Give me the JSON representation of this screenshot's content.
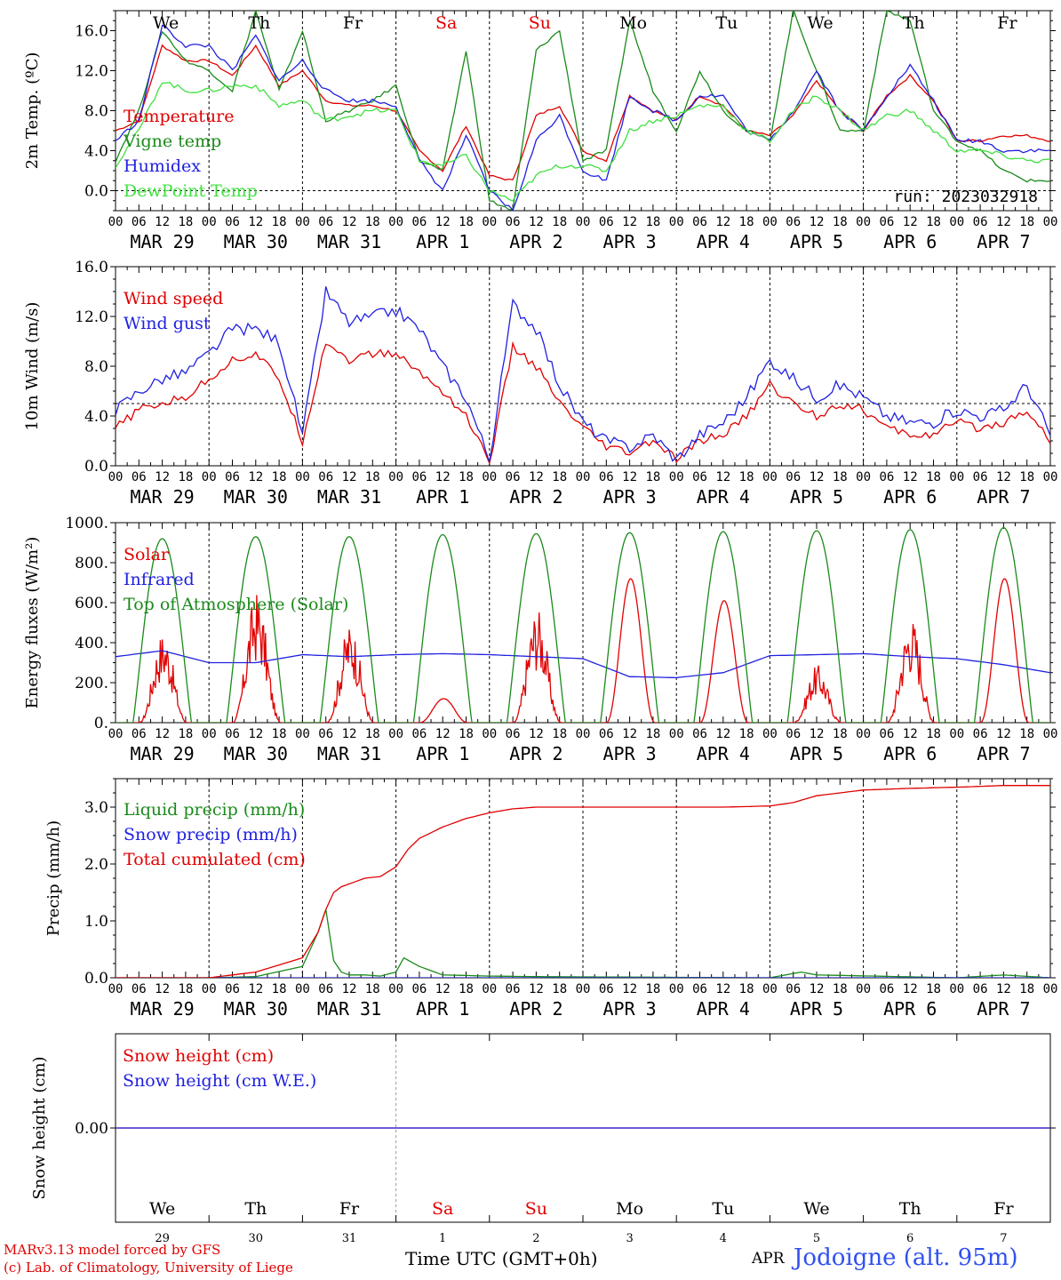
{
  "chart_data": [
    {
      "type": "line",
      "ylabel": "2m Temp. (ºC)",
      "ylim": [
        -2,
        18
      ],
      "yticks": [
        "0.0",
        "4.0",
        "8.0",
        "12.0",
        "16.0"
      ],
      "ytick_values": [
        0,
        4,
        8,
        12,
        16
      ],
      "ref_line": 0,
      "run_label": "run: 2023032918",
      "x_hours": [
        0,
        6,
        12,
        18,
        24,
        30,
        36,
        42,
        48,
        54,
        60,
        66,
        72,
        78,
        84,
        90,
        96,
        102,
        108,
        114,
        120,
        126,
        132,
        138,
        144,
        150,
        156,
        162,
        168,
        174,
        180,
        186,
        192,
        198,
        204,
        210,
        216,
        222,
        228,
        234,
        240
      ],
      "series": [
        {
          "name": "Temperature",
          "color": "#e00000",
          "values": [
            6,
            7,
            14.5,
            13,
            13,
            11.5,
            14.5,
            10.5,
            12,
            9,
            8.5,
            8.5,
            8,
            4,
            2,
            6.5,
            1.5,
            1,
            7.5,
            8.5,
            4,
            3,
            9.5,
            8,
            7,
            9.5,
            8.5,
            6,
            5.5,
            7.5,
            11,
            8,
            6,
            9.5,
            11.5,
            9,
            5,
            5,
            5.5,
            5.5,
            5
          ]
        },
        {
          "name": "Vigne temp",
          "color": "#1a8a1a",
          "values": [
            3,
            8,
            16,
            13,
            12,
            10,
            18,
            10,
            16,
            7,
            8,
            9,
            10.5,
            3,
            2,
            14,
            -1,
            -2,
            14,
            16,
            3,
            4,
            17,
            10,
            6,
            12,
            8,
            6,
            5,
            18,
            12,
            6,
            6,
            18,
            17,
            8,
            5,
            4,
            2,
            1,
            1
          ]
        },
        {
          "name": "Humidex",
          "color": "#2020e0",
          "values": [
            5,
            7,
            16.5,
            14.5,
            14.5,
            12,
            15.5,
            11,
            13,
            10,
            9,
            9,
            8.5,
            3,
            0,
            5.5,
            0,
            -2,
            5,
            7.5,
            2,
            1,
            9.5,
            8,
            7,
            9.5,
            9.5,
            6,
            5,
            8,
            12,
            8,
            6,
            9.5,
            12.5,
            9,
            5,
            5,
            4,
            4,
            4
          ]
        },
        {
          "name": "DewPoint Temp",
          "color": "#40e040",
          "values": [
            2.5,
            6,
            11,
            10,
            10,
            10.5,
            10.5,
            8.5,
            9,
            7,
            7.5,
            8,
            8,
            3,
            2.5,
            3.5,
            0,
            -1,
            1.5,
            2.5,
            2.5,
            2,
            6,
            7,
            7.5,
            8.5,
            8.5,
            6,
            5,
            8,
            9.5,
            8,
            6,
            7.5,
            8,
            6,
            4,
            4,
            3.5,
            3,
            3
          ]
        }
      ]
    },
    {
      "type": "line",
      "ylabel": "10m Wind (m/s)",
      "ylim": [
        0,
        16
      ],
      "yticks": [
        "0.0",
        "4.0",
        "8.0",
        "12.0",
        "16.0"
      ],
      "ytick_values": [
        0,
        4,
        8,
        12,
        16
      ],
      "ref_line": 5,
      "x_hours": [
        0,
        6,
        12,
        18,
        24,
        30,
        36,
        42,
        48,
        54,
        60,
        66,
        72,
        78,
        84,
        90,
        96,
        102,
        108,
        114,
        120,
        126,
        132,
        138,
        144,
        150,
        156,
        162,
        168,
        174,
        180,
        186,
        192,
        198,
        204,
        210,
        216,
        222,
        228,
        234,
        240
      ],
      "series": [
        {
          "name": "Wind speed",
          "color": "#e00000",
          "values": [
            3,
            4.5,
            5,
            5.5,
            7,
            8.5,
            9,
            7,
            2,
            10,
            8.5,
            9,
            9,
            7.5,
            6,
            4,
            0.3,
            9.5,
            8,
            5,
            3,
            1.5,
            1,
            2,
            0.5,
            2,
            2.5,
            4,
            6.5,
            5,
            4,
            5,
            4.5,
            3,
            2.5,
            2.5,
            3.5,
            3,
            3.5,
            4.5,
            2
          ]
        },
        {
          "name": "Wind gust",
          "color": "#2020e0",
          "values": [
            4.5,
            6,
            7,
            7.5,
            9,
            11,
            11,
            10,
            2.5,
            14,
            11.5,
            12,
            12.5,
            11,
            8,
            5.5,
            0.5,
            13,
            11,
            6.5,
            3.5,
            2,
            1.5,
            2.5,
            0.5,
            2.5,
            3.5,
            5.5,
            8.5,
            7,
            5.5,
            6.5,
            5.5,
            4,
            3.5,
            3.5,
            4.5,
            4,
            4.5,
            6.5,
            2.5
          ]
        }
      ]
    },
    {
      "type": "line",
      "ylabel": "Energy fluxes (W/m²)",
      "ylim": [
        0,
        1000
      ],
      "yticks": [
        "0.",
        "200.",
        "400.",
        "600.",
        "800.",
        "1000."
      ],
      "ytick_values": [
        0,
        200,
        400,
        600,
        800,
        1000
      ],
      "series": [
        {
          "name": "Solar",
          "color": "#e00000",
          "peaks": [
            460,
            660,
            500,
            120,
            580,
            720,
            610,
            290,
            540,
            720
          ],
          "noisy": [
            true,
            true,
            true,
            false,
            true,
            false,
            false,
            true,
            true,
            false
          ]
        },
        {
          "name": "Infrared",
          "color": "#2020e0",
          "x_hours": [
            0,
            12,
            24,
            36,
            48,
            60,
            72,
            84,
            96,
            108,
            120,
            132,
            144,
            156,
            168,
            180,
            192,
            204,
            216,
            228,
            240
          ],
          "values": [
            330,
            360,
            300,
            300,
            340,
            330,
            340,
            345,
            340,
            330,
            320,
            230,
            225,
            250,
            335,
            340,
            345,
            330,
            320,
            290,
            250
          ]
        },
        {
          "name": "Top of Atmosphere (Solar)",
          "color": "#1a8a1a",
          "peaks": [
            920,
            930,
            930,
            940,
            945,
            950,
            955,
            960,
            965,
            975
          ]
        }
      ]
    },
    {
      "type": "line",
      "ylabel": "Precip (mm/h)",
      "ylim": [
        0,
        3.5
      ],
      "yticks": [
        "0.0",
        "1.0",
        "2.0",
        "3.0"
      ],
      "ytick_values": [
        0,
        1,
        2,
        3
      ],
      "series": [
        {
          "name": "Liquid precip (mm/h)",
          "color": "#1a8a1a",
          "x_hours": [
            0,
            24,
            36,
            48,
            52,
            54,
            56,
            58,
            60,
            64,
            68,
            72,
            74,
            78,
            84,
            96,
            108,
            168,
            172,
            176,
            180,
            216,
            228,
            240
          ],
          "values": [
            0,
            0,
            0.02,
            0.2,
            0.8,
            1.2,
            0.3,
            0.1,
            0.05,
            0.05,
            0.03,
            0.1,
            0.35,
            0.2,
            0.05,
            0.03,
            0.02,
            0,
            0.05,
            0.1,
            0.05,
            0,
            0.05,
            0
          ]
        },
        {
          "name": "Snow precip (mm/h)",
          "color": "#2020e0",
          "x_hours": [
            0,
            240
          ],
          "values": [
            0,
            0
          ]
        },
        {
          "name": "Total cumulated (cm)",
          "color": "#e00000",
          "x_hours": [
            0,
            24,
            36,
            48,
            52,
            54,
            56,
            58,
            60,
            64,
            68,
            72,
            75,
            78,
            84,
            90,
            96,
            102,
            108,
            120,
            132,
            144,
            156,
            168,
            174,
            180,
            192,
            204,
            216,
            228,
            240
          ],
          "values": [
            0,
            0,
            0.1,
            0.35,
            0.8,
            1.2,
            1.5,
            1.6,
            1.65,
            1.75,
            1.78,
            1.95,
            2.25,
            2.45,
            2.65,
            2.8,
            2.9,
            2.97,
            3.0,
            3.0,
            3.0,
            3.0,
            3.0,
            3.02,
            3.08,
            3.2,
            3.3,
            3.33,
            3.35,
            3.38,
            3.38
          ]
        }
      ]
    },
    {
      "type": "line",
      "ylabel": "Snow height (cm)",
      "ylim": [
        -1,
        1
      ],
      "yticks": [
        "0.00"
      ],
      "ytick_values": [
        0
      ],
      "series": [
        {
          "name": "Snow height (cm)",
          "color": "#e00000",
          "x_hours": [
            0,
            240
          ],
          "values": [
            0,
            0
          ]
        },
        {
          "name": "Snow height (cm W.E.)",
          "color": "#2020e0",
          "x_hours": [
            0,
            240
          ],
          "values": [
            0,
            0
          ]
        }
      ]
    }
  ],
  "axis": {
    "hour_ticks": [
      "00",
      "06",
      "12",
      "18"
    ],
    "end_tick": "00",
    "date_labels": [
      "MAR 29",
      "MAR 30",
      "MAR 31",
      "APR  1",
      "APR  2",
      "APR  3",
      "APR  4",
      "APR  5",
      "APR  6",
      "APR  7"
    ],
    "weekdays": [
      "We",
      "Th",
      "Fr",
      "Sa",
      "Su",
      "Mo",
      "Tu",
      "We",
      "Th",
      "Fr"
    ],
    "weekday_colors": [
      "#000000",
      "#000000",
      "#000000",
      "#e00000",
      "#e00000",
      "#000000",
      "#000000",
      "#000000",
      "#000000",
      "#000000"
    ],
    "day_numbers": [
      "29",
      "30",
      "31",
      "1",
      "2",
      "3",
      "4",
      "5",
      "6",
      "7"
    ]
  },
  "footer": {
    "model_line": "MARv3.13 model forced by GFS",
    "copyright_line": "(c) Lab. of Climatology, University of Liege",
    "time_label": "Time UTC (GMT+0h)",
    "month_label": "APR",
    "station": "Jodoigne (alt. 95m)"
  }
}
